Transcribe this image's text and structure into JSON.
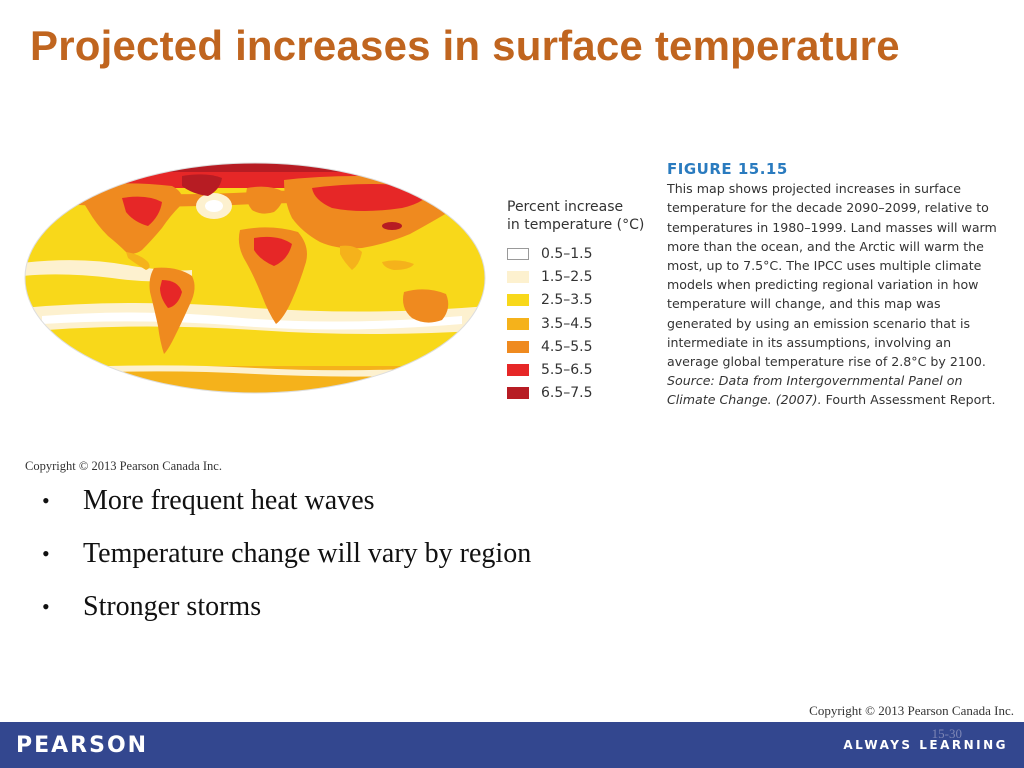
{
  "slide": {
    "title": "Projected increases in surface temperature",
    "bullets": [
      "More frequent heat waves",
      "Temperature change will vary by region",
      "Stronger storms"
    ],
    "figure_copyright": "Copyright © 2013 Pearson Canada Inc.",
    "footer_copyright": "Copyright © 2013 Pearson Canada Inc.",
    "slide_number": "15-30",
    "brand": "PEARSON",
    "tagline": "ALWAYS LEARNING"
  },
  "map": {
    "legend_title": "Percent increase\nin temperature (°C)",
    "legend": [
      {
        "label": "0.5–1.5",
        "color": "#ffffff"
      },
      {
        "label": "1.5–2.5",
        "color": "#fdf1cf"
      },
      {
        "label": "2.5–3.5",
        "color": "#f8d81a"
      },
      {
        "label": "3.5–4.5",
        "color": "#f5b21b"
      },
      {
        "label": "4.5–5.5",
        "color": "#ef8a1f"
      },
      {
        "label": "5.5–6.5",
        "color": "#e62727"
      },
      {
        "label": "6.5–7.5",
        "color": "#b71c23"
      }
    ]
  },
  "caption": {
    "figure_number": "FIGURE 15.15",
    "text": "This map shows projected increases in surface temperature for the decade 2090–2099, relative to temperatures in 1980–1999. Land masses will warm more than the ocean, and the Arctic will warm the most, up to 7.5°C. The IPCC uses multiple climate models when predicting regional variation in how temperature will change, and this map was generated by using an emission scenario that is intermediate in its assumptions, involving an average global temperature rise of 2.8°C by 2100.",
    "source_italic": "Source: Data from Intergovernmental Panel on Climate Change. (2007).",
    "source_rest": " Fourth Assessment Report."
  }
}
